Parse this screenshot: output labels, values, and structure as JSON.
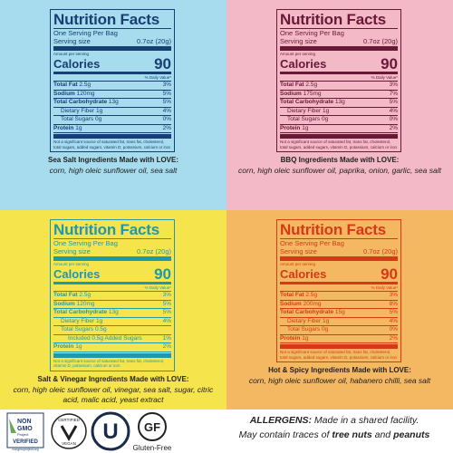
{
  "panels": [
    {
      "background": "#a6dcee",
      "color": "#173f73",
      "title": "Nutrition Facts",
      "servings": "One Serving Per Bag",
      "serving_label": "Serving size",
      "serving_size": "0.7oz (20g)",
      "amount_label": "Amount per serving",
      "calories_label": "Calories",
      "calories": "90",
      "dv_label": "% Daily Value*",
      "rows": [
        {
          "name": "Total Fat",
          "amount": "2.5g",
          "dv": "3%"
        },
        {
          "name": "Sodium",
          "amount": "120mg",
          "dv": "5%"
        },
        {
          "name": "Total Carbohydrate",
          "amount": "13g",
          "dv": "5%",
          "sub": [
            {
              "name": "Dietary Fiber",
              "amount": "1g",
              "dv": "4%"
            },
            {
              "name": "Total Sugars",
              "amount": "0g",
              "dv": "0%"
            }
          ]
        },
        {
          "name": "Protein",
          "amount": "1g",
          "dv": "2%"
        }
      ],
      "footnote": "Not a significant source of saturated fat, trans fat, cholesterol, total sugars, added sugars, vitamin D, potassium, calcium or iron",
      "ingredients_heading": "Sea Salt Ingredients Made with LOVE:",
      "ingredients": "corn, high oleic sunflower oil, sea salt"
    },
    {
      "background": "#f3b9c7",
      "color": "#6a1838",
      "title": "Nutrition Facts",
      "servings": "One Serving Per Bag",
      "serving_label": "Serving size",
      "serving_size": "0.7oz (20g)",
      "amount_label": "Amount per serving",
      "calories_label": "Calories",
      "calories": "90",
      "dv_label": "% Daily Value*",
      "rows": [
        {
          "name": "Total Fat",
          "amount": "2.5g",
          "dv": "3%"
        },
        {
          "name": "Sodium",
          "amount": "175mg",
          "dv": "7%"
        },
        {
          "name": "Total Carbohydrate",
          "amount": "13g",
          "dv": "5%",
          "sub": [
            {
              "name": "Dietary Fiber",
              "amount": "1g",
              "dv": "4%"
            },
            {
              "name": "Total Sugars",
              "amount": "0g",
              "dv": "0%"
            }
          ]
        },
        {
          "name": "Protein",
          "amount": "1g",
          "dv": "2%"
        }
      ],
      "footnote": "Not a significant source of saturated fat, trans fat, cholesterol, total sugars, added sugars, vitamin D, potassium, calcium or iron",
      "ingredients_heading": "BBQ Ingredients Made with LOVE:",
      "ingredients": "corn, high oleic sunflower oil, paprika, onion, garlic, sea salt"
    },
    {
      "background": "#f6e44c",
      "color": "#1f98ae",
      "title": "Nutrition Facts",
      "servings": "One Serving Per Bag",
      "serving_label": "Serving size",
      "serving_size": "0.7oz (20g)",
      "amount_label": "Amount per serving",
      "calories_label": "Calories",
      "calories": "90",
      "dv_label": "% Daily Value*",
      "rows": [
        {
          "name": "Total Fat",
          "amount": "2.5g",
          "dv": "3%"
        },
        {
          "name": "Sodium",
          "amount": "120mg",
          "dv": "5%"
        },
        {
          "name": "Total Carbohydrate",
          "amount": "13g",
          "dv": "5%",
          "sub": [
            {
              "name": "Dietary Fiber",
              "amount": "1g",
              "dv": "4%"
            },
            {
              "name": "Total Sugars",
              "amount": "0.5g",
              "dv": "",
              "sub": [
                {
                  "name": "Included",
                  "amount": "0.5g Added Sugars",
                  "dv": "1%"
                }
              ]
            }
          ]
        },
        {
          "name": "Protein",
          "amount": "1g",
          "dv": "2%"
        }
      ],
      "footnote": "Not a significant source of saturated fat, trans fat, cholesterol, vitamin D, potassium, calcium or iron",
      "ingredients_heading": "Salt & Vinegar Ingredients Made with LOVE:",
      "ingredients": "corn, high oleic sunflower oil, vinegar, sea salt, sugar, citric acid, malic acid, yeast extract"
    },
    {
      "background": "#f4b862",
      "color": "#d43a17",
      "title": "Nutrition Facts",
      "servings": "One Serving Per Bag",
      "serving_label": "Serving size",
      "serving_size": "0.7oz (20g)",
      "amount_label": "Amount per serving",
      "calories_label": "Calories",
      "calories": "90",
      "dv_label": "% Daily Value*",
      "rows": [
        {
          "name": "Total Fat",
          "amount": "2.5g",
          "dv": "3%"
        },
        {
          "name": "Sodium",
          "amount": "200mg",
          "dv": "8%"
        },
        {
          "name": "Total Carbohydrate",
          "amount": "15g",
          "dv": "5%",
          "sub": [
            {
              "name": "Dietary Fiber",
              "amount": "1g",
              "dv": "4%"
            },
            {
              "name": "Total Sugars",
              "amount": "0g",
              "dv": "0%"
            }
          ]
        },
        {
          "name": "Protein",
          "amount": "1g",
          "dv": "2%"
        }
      ],
      "footnote": "Not a significant source of saturated fat, trans fat, cholesterol, total sugars, added sugars, vitamin D, potassium, calcium or iron",
      "ingredients_heading": "Hot & Spicy Ingredients Made with LOVE:",
      "ingredients": "corn, high oleic sunflower oil, habanero chilli, sea salt"
    }
  ],
  "footer": {
    "badges": {
      "non_gmo_1": "NON",
      "non_gmo_2": "GMO",
      "non_gmo_3": "Project",
      "non_gmo_4": "VERIFIED",
      "non_gmo_5": "nongmoproject.org",
      "vegan_1": "CERTIFIED",
      "vegan_2": "VEGAN",
      "kosher": "U",
      "gf": "GF",
      "gf_label": "Gluten-Free"
    },
    "allergens": {
      "label": "ALLERGENS:",
      "text1": "Made in a shared facility.",
      "text2": "May contain traces of",
      "nuts": "tree nuts",
      "and": "and",
      "peanuts": "peanuts"
    }
  }
}
